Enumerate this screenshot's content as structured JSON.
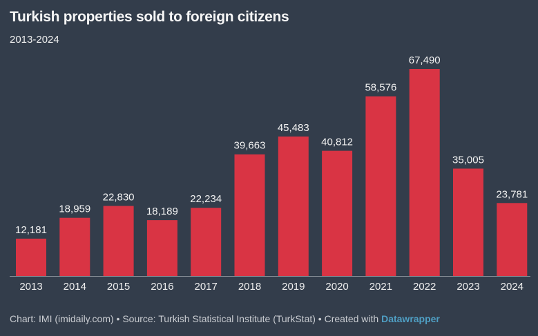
{
  "chart_data": {
    "type": "bar",
    "title": "Turkish properties sold to foreign citizens",
    "subtitle": "2013-2024",
    "categories": [
      "2013",
      "2014",
      "2015",
      "2016",
      "2017",
      "2018",
      "2019",
      "2020",
      "2021",
      "2022",
      "2023",
      "2024"
    ],
    "values": [
      12181,
      18959,
      22830,
      18189,
      22234,
      39663,
      45483,
      40812,
      58576,
      67490,
      35005,
      23781
    ],
    "value_labels": [
      "12,181",
      "18,959",
      "22,830",
      "18,189",
      "22,234",
      "39,663",
      "45,483",
      "40,812",
      "58,576",
      "67,490",
      "35,005",
      "23,781"
    ],
    "xlabel": "",
    "ylabel": "",
    "ylim": [
      0,
      67490
    ],
    "grid": false,
    "legend": "none",
    "bar_color": "#d93444",
    "background": "#333d4b"
  },
  "footer": {
    "text": "Chart: IMI (imidaily.com) • Source: Turkish Statistical Institute (TurkStat) • Created with ",
    "brand": "Datawrapper"
  }
}
